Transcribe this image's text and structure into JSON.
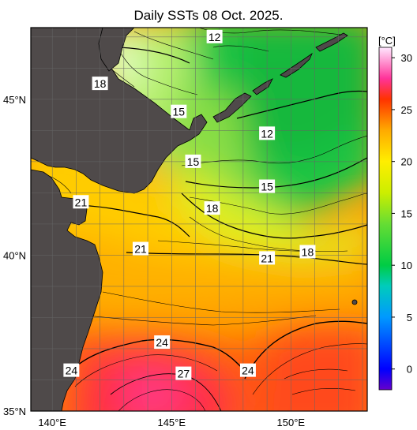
{
  "title": "Daily SSTs 08 Oct. 2025.",
  "map": {
    "lat_labels": [
      {
        "text": "45°N",
        "lat": 45
      },
      {
        "text": "40°N",
        "lat": 40
      },
      {
        "text": "35°N",
        "lat": 35
      }
    ],
    "lon_labels": [
      {
        "text": "140°E",
        "lon": 140
      },
      {
        "text": "145°E",
        "lon": 145
      },
      {
        "text": "150°E",
        "lon": 150
      }
    ],
    "contour_labels": [
      {
        "text": "12",
        "lon": 146.8,
        "lat": 47.0
      },
      {
        "text": "18",
        "lon": 142.0,
        "lat": 45.5
      },
      {
        "text": "15",
        "lon": 145.3,
        "lat": 44.6
      },
      {
        "text": "12",
        "lon": 149.0,
        "lat": 43.9
      },
      {
        "text": "15",
        "lon": 145.9,
        "lat": 43.0
      },
      {
        "text": "15",
        "lon": 149.0,
        "lat": 42.2
      },
      {
        "text": "21",
        "lon": 141.2,
        "lat": 41.7
      },
      {
        "text": "18",
        "lon": 146.7,
        "lat": 41.5
      },
      {
        "text": "21",
        "lon": 143.7,
        "lat": 40.2
      },
      {
        "text": "18",
        "lon": 150.7,
        "lat": 40.1
      },
      {
        "text": "21",
        "lon": 149.0,
        "lat": 39.9
      },
      {
        "text": "24",
        "lon": 144.6,
        "lat": 37.2
      },
      {
        "text": "24",
        "lon": 140.8,
        "lat": 36.3
      },
      {
        "text": "27",
        "lon": 145.5,
        "lat": 36.2
      },
      {
        "text": "24",
        "lon": 148.2,
        "lat": 36.3
      }
    ]
  },
  "colorbar": {
    "unit": "[°C]",
    "ticks": [
      "30",
      "25",
      "20",
      "15",
      "10",
      "5",
      "0"
    ],
    "min": -2,
    "max": 31,
    "stops": [
      {
        "v": -2,
        "color": "#6600cc"
      },
      {
        "v": 0,
        "color": "#0000ff"
      },
      {
        "v": 5,
        "color": "#0099ff"
      },
      {
        "v": 8,
        "color": "#00ccbb"
      },
      {
        "v": 10,
        "color": "#00cc44"
      },
      {
        "v": 14,
        "color": "#66dd33"
      },
      {
        "v": 17,
        "color": "#ccee00"
      },
      {
        "v": 20,
        "color": "#ffee00"
      },
      {
        "v": 23,
        "color": "#ffaa00"
      },
      {
        "v": 26,
        "color": "#ff3300"
      },
      {
        "v": 28,
        "color": "#ff3399"
      },
      {
        "v": 31,
        "color": "#ffe8ff"
      }
    ]
  },
  "colors": {
    "land": "#4f4a4a",
    "frame": "#000000",
    "cold_sea": "#1fc645",
    "warm_sea": "#ff7a00",
    "hot_sea": "#ff3050"
  }
}
